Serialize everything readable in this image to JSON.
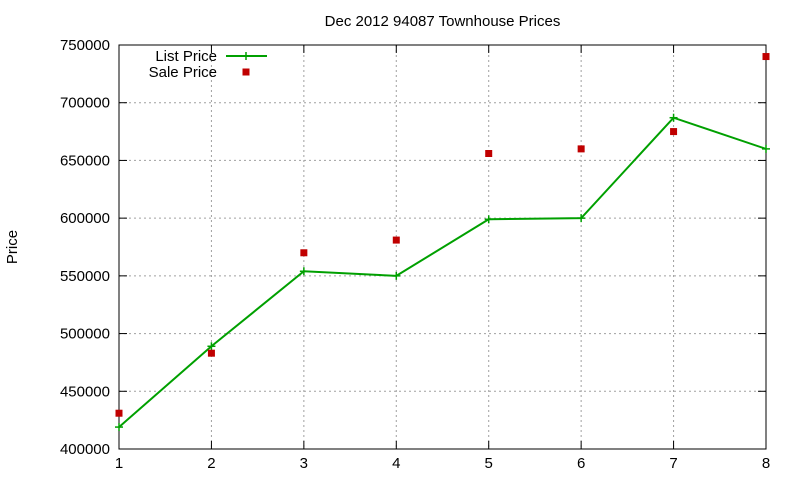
{
  "chart_data": {
    "type": "line",
    "title": "Dec 2012 94087 Townhouse Prices",
    "xlabel": "",
    "ylabel": "Price",
    "x": [
      1,
      2,
      3,
      4,
      5,
      6,
      7,
      8
    ],
    "xlim": [
      1,
      8
    ],
    "ylim": [
      400000,
      750000
    ],
    "xticks": [
      "1",
      "2",
      "3",
      "4",
      "5",
      "6",
      "7",
      "8"
    ],
    "yticks": [
      "400000",
      "450000",
      "500000",
      "550000",
      "600000",
      "650000",
      "700000",
      "750000"
    ],
    "grid": true,
    "legend_position": "top-left",
    "series": [
      {
        "name": "List Price",
        "style": "line-with-plus-markers",
        "color": "#00a000",
        "values": [
          419000,
          489000,
          554000,
          550000,
          599000,
          600000,
          687000,
          660000
        ]
      },
      {
        "name": "Sale Price",
        "style": "square-markers",
        "color": "#c00000",
        "values": [
          431000,
          483000,
          570000,
          581000,
          656000,
          660000,
          675000,
          740000
        ]
      }
    ]
  }
}
